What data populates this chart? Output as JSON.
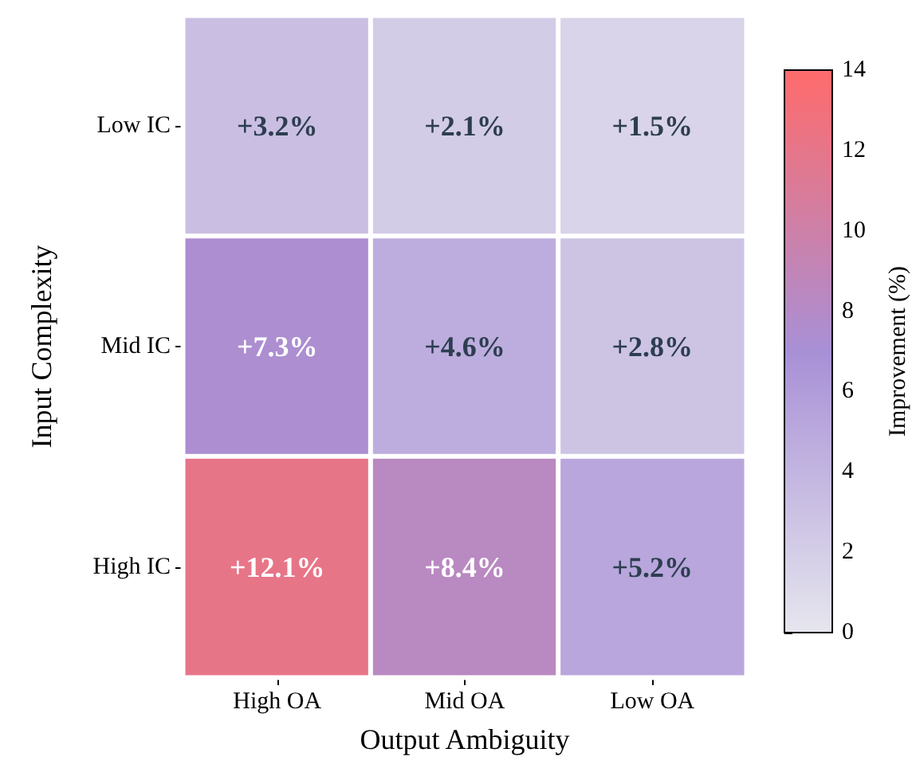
{
  "chart_data": {
    "type": "heatmap",
    "xlabel": "Output Ambiguity",
    "ylabel": "Input Complexity",
    "clabel": "Improvement (%)",
    "categories": [
      "High OA",
      "Mid OA",
      "Low OA"
    ],
    "y_categories": [
      "Low IC",
      "Mid IC",
      "High IC"
    ],
    "cells": [
      [
        3.2,
        2.1,
        1.5
      ],
      [
        7.3,
        4.6,
        2.8
      ],
      [
        12.1,
        8.4,
        5.2
      ]
    ],
    "cell_labels": [
      [
        "+3.2%",
        "+2.1%",
        "+1.5%"
      ],
      [
        "+7.3%",
        "+4.6%",
        "+2.8%"
      ],
      [
        "+12.1%",
        "+8.4%",
        "+5.2%"
      ]
    ],
    "clim": [
      0,
      14
    ],
    "cticks": [
      0,
      2,
      4,
      6,
      8,
      10,
      12,
      14
    ]
  }
}
